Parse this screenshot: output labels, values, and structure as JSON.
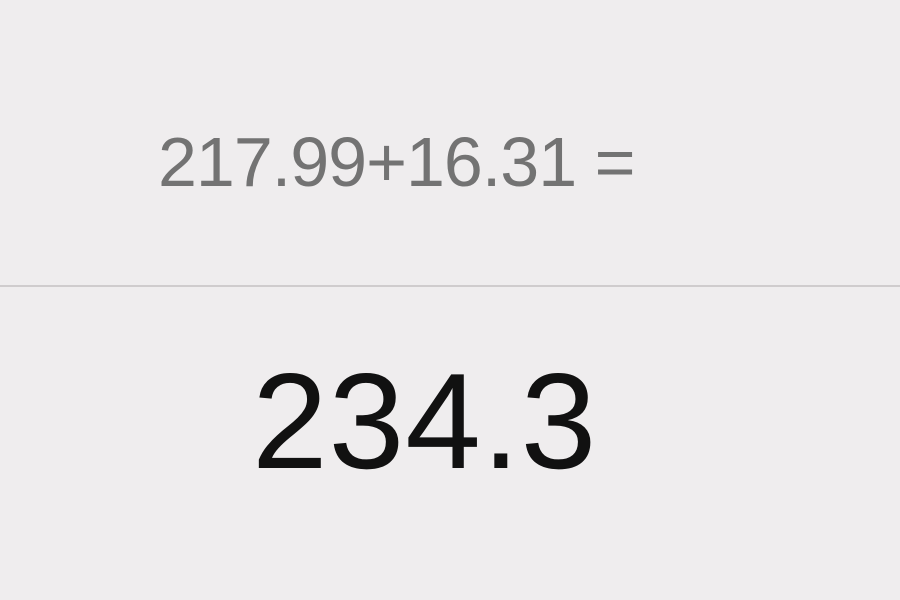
{
  "calculator": {
    "expression": "217.99+16.31 =",
    "result": "234.3"
  }
}
